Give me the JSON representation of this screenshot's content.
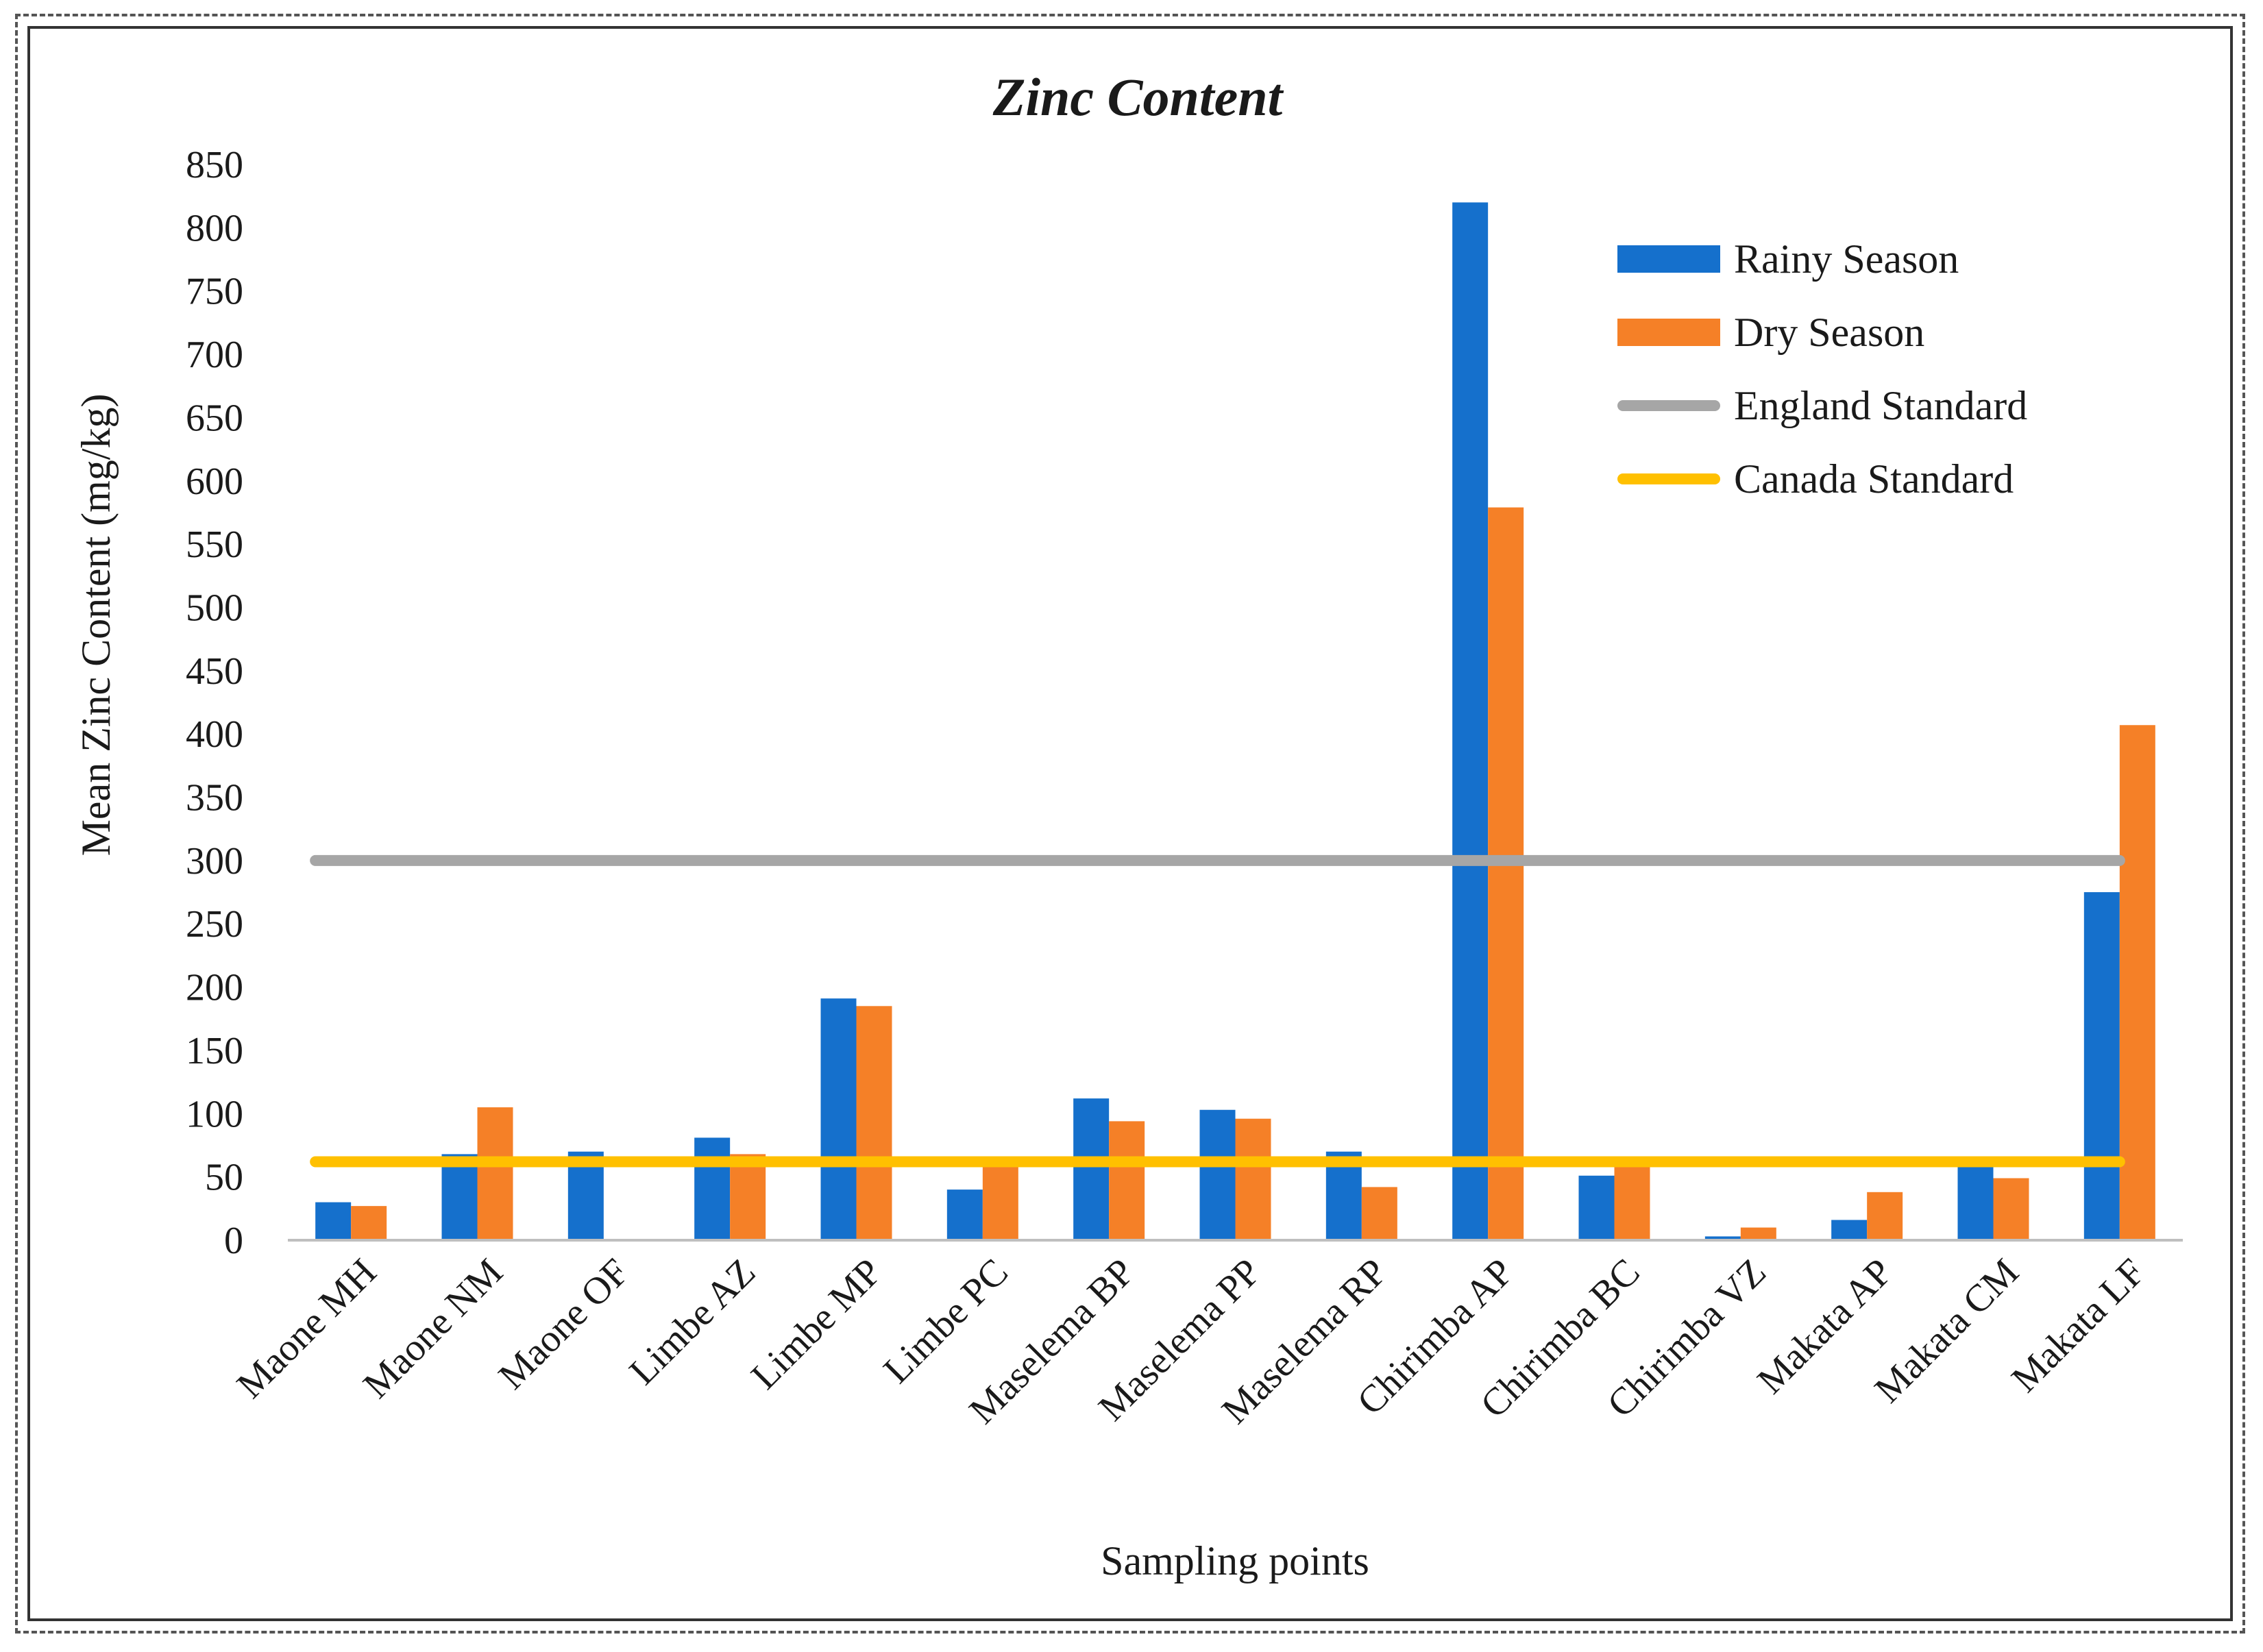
{
  "chart_data": {
    "type": "bar",
    "title": "Zinc Content",
    "xlabel": "Sampling points",
    "ylabel": "Mean Zinc  Content (mg/kg)",
    "ylim": [
      0,
      850
    ],
    "yticks": [
      "0",
      "50",
      "100",
      "150",
      "200",
      "250",
      "300",
      "350",
      "400",
      "450",
      "500",
      "550",
      "600",
      "650",
      "700",
      "750",
      "800",
      "850"
    ],
    "categories": [
      "Maone MH",
      "Maone NM",
      "Maone OF",
      "Limbe AZ",
      "Limbe MP",
      "Limbe PC",
      "Maselema BP",
      "Maselema PP",
      "Maselema RP",
      "Chirimba AP",
      "Chirimba BC",
      "Chirimba VZ",
      "Makata AP",
      "Makata CM",
      "Makata LF"
    ],
    "series": [
      {
        "name": "Rainy Season",
        "color": "#1570CC",
        "values": [
          30,
          68,
          70,
          81,
          191,
          40,
          112,
          103,
          70,
          820,
          51,
          3,
          16,
          60,
          275
        ]
      },
      {
        "name": "Dry Season",
        "color": "#F58027",
        "values": [
          27,
          105,
          0,
          68,
          185,
          62,
          94,
          96,
          42,
          579,
          63,
          10,
          38,
          49,
          407
        ]
      }
    ],
    "reference_lines": [
      {
        "name": "England Standard",
        "color": "#A6A6A6",
        "value": 300
      },
      {
        "name": "Canada Standard",
        "color": "#FFC000",
        "value": 62
      }
    ],
    "legend_position": "top-right",
    "grid": false
  }
}
